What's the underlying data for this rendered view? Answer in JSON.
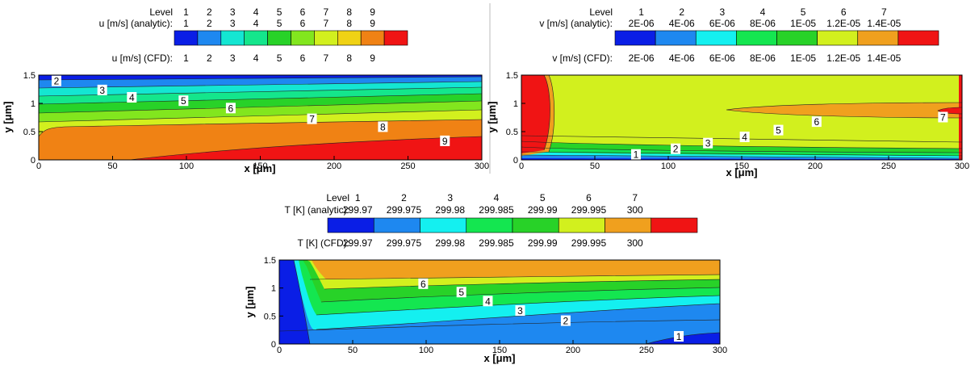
{
  "chart_data": [
    {
      "type": "contour",
      "id": "u",
      "legend": {
        "level_title": "Level",
        "analytic_title": "u [m/s] (analytic):",
        "cfd_title": "u [m/s] (CFD):",
        "levels": [
          "1",
          "2",
          "3",
          "4",
          "5",
          "6",
          "7",
          "8",
          "9"
        ],
        "analytic_values": [
          "1",
          "2",
          "3",
          "4",
          "5",
          "6",
          "7",
          "8",
          "9"
        ],
        "cfd_values": [
          "1",
          "2",
          "3",
          "4",
          "5",
          "6",
          "7",
          "8",
          "9"
        ],
        "colors": [
          "#0a1ee6",
          "#1e88f0",
          "#14e6d2",
          "#14e68c",
          "#28d228",
          "#82e61e",
          "#d2f01e",
          "#f0d214",
          "#f08214",
          "#f01414"
        ]
      },
      "xlabel": "x [μm]",
      "ylabel": "y [μm]",
      "xlim": [
        0,
        300
      ],
      "ylim": [
        0,
        1.5
      ],
      "xticks": [
        "0",
        "50",
        "100",
        "150",
        "200",
        "250",
        "300"
      ],
      "yticks": [
        "0",
        "0.5",
        "1",
        "1.5"
      ],
      "contour_labels": [
        {
          "text": "2",
          "x": 12,
          "y": 1.39
        },
        {
          "text": "3",
          "x": 43,
          "y": 1.23
        },
        {
          "text": "4",
          "x": 63,
          "y": 1.1
        },
        {
          "text": "5",
          "x": 98,
          "y": 1.04
        },
        {
          "text": "6",
          "x": 130,
          "y": 0.91
        },
        {
          "text": "7",
          "x": 185,
          "y": 0.72
        },
        {
          "text": "8",
          "x": 233,
          "y": 0.58
        },
        {
          "text": "9",
          "x": 275,
          "y": 0.33
        }
      ]
    },
    {
      "type": "contour",
      "id": "v",
      "legend": {
        "level_title": "Level",
        "analytic_title": "v [m/s] (analytic):",
        "cfd_title": "v [m/s] (CFD):",
        "levels": [
          "1",
          "2",
          "3",
          "4",
          "5",
          "6",
          "7"
        ],
        "analytic_values": [
          "2E-06",
          "4E-06",
          "6E-06",
          "8E-06",
          "1E-05",
          "1.2E-05",
          "1.4E-05"
        ],
        "cfd_values": [
          "2E-06",
          "4E-06",
          "6E-06",
          "8E-06",
          "1E-05",
          "1.2E-05",
          "1.4E-05"
        ],
        "colors": [
          "#0a1ee6",
          "#1e88f0",
          "#14f0f0",
          "#14e650",
          "#28d228",
          "#d2f01e",
          "#f0a01e",
          "#f01414"
        ]
      },
      "xlabel": "x [μm]",
      "ylabel": "y [μm]",
      "xlim": [
        0,
        300
      ],
      "ylim": [
        0,
        1.5
      ],
      "xticks": [
        "0",
        "50",
        "100",
        "150",
        "200",
        "250",
        "300"
      ],
      "yticks": [
        "0",
        "0.5",
        "1",
        "1.5"
      ],
      "contour_labels": [
        {
          "text": "1",
          "x": 78,
          "y": 0.09
        },
        {
          "text": "2",
          "x": 105,
          "y": 0.19
        },
        {
          "text": "3",
          "x": 127,
          "y": 0.29
        },
        {
          "text": "4",
          "x": 152,
          "y": 0.4
        },
        {
          "text": "5",
          "x": 175,
          "y": 0.52
        },
        {
          "text": "6",
          "x": 201,
          "y": 0.67
        },
        {
          "text": "7",
          "x": 287,
          "y": 0.75
        }
      ]
    },
    {
      "type": "contour",
      "id": "T",
      "legend": {
        "level_title": "Level",
        "analytic_title": "T [K] (analytic):",
        "cfd_title": "T [K] (CFD):",
        "levels": [
          "1",
          "2",
          "3",
          "4",
          "5",
          "6",
          "7"
        ],
        "analytic_values": [
          "299.97",
          "299.975",
          "299.98",
          "299.985",
          "299.99",
          "299.995",
          "300"
        ],
        "cfd_values": [
          "299.97",
          "299.975",
          "299.98",
          "299.985",
          "299.99",
          "299.995",
          "300"
        ],
        "colors": [
          "#0a1ee6",
          "#1e88f0",
          "#14f0f0",
          "#14e650",
          "#28d228",
          "#d2f01e",
          "#f0a01e",
          "#f01414"
        ]
      },
      "xlabel": "x [μm]",
      "ylabel": "y [μm]",
      "xlim": [
        0,
        300
      ],
      "ylim": [
        0,
        1.5
      ],
      "xticks": [
        "0",
        "50",
        "100",
        "150",
        "200",
        "250",
        "300"
      ],
      "yticks": [
        "0",
        "0.5",
        "1",
        "1.5"
      ],
      "contour_labels": [
        {
          "text": "6",
          "x": 98,
          "y": 1.07
        },
        {
          "text": "5",
          "x": 124,
          "y": 0.92
        },
        {
          "text": "4",
          "x": 142,
          "y": 0.76
        },
        {
          "text": "3",
          "x": 164,
          "y": 0.59
        },
        {
          "text": "2",
          "x": 195,
          "y": 0.41
        },
        {
          "text": "1",
          "x": 272,
          "y": 0.13
        }
      ]
    }
  ]
}
